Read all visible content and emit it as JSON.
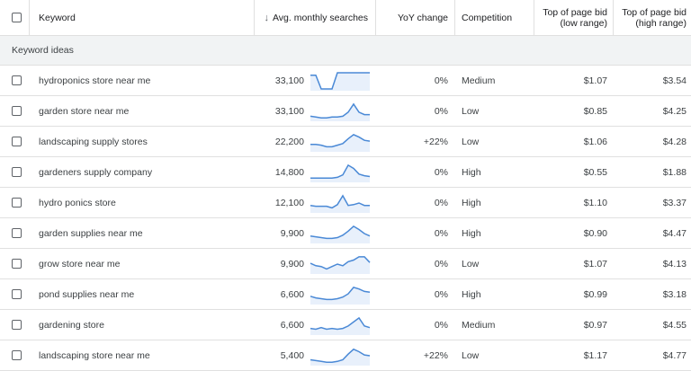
{
  "header": {
    "keyword": "Keyword",
    "avg_searches": "Avg. monthly searches",
    "sort_icon": "arrow-down-icon",
    "yoy": "YoY change",
    "competition": "Competition",
    "bid_low_line1": "Top of page bid",
    "bid_low_line2": "(low range)",
    "bid_high_line1": "Top of page bid",
    "bid_high_line2": "(high range)"
  },
  "group_label": "Keyword ideas",
  "colors": {
    "spark_line": "#4a89d6",
    "spark_fill": "#e8f0fb",
    "border": "#e0e0e0",
    "group_bg": "#f1f3f4"
  },
  "rows": [
    {
      "keyword": "hydroponics store near me",
      "searches": "33,100",
      "yoy": "0%",
      "competition": "Medium",
      "bid_low": "$1.07",
      "bid_high": "$3.54",
      "trend": [
        0.85,
        0.85,
        0.0,
        0.0,
        0.0,
        1.0,
        1.0,
        1.0,
        1.0,
        1.0,
        1.0,
        1.0
      ]
    },
    {
      "keyword": "garden store near me",
      "searches": "33,100",
      "yoy": "0%",
      "competition": "Low",
      "bid_low": "$0.85",
      "bid_high": "$4.25",
      "trend": [
        0.2,
        0.15,
        0.1,
        0.1,
        0.15,
        0.15,
        0.2,
        0.45,
        0.95,
        0.45,
        0.3,
        0.3
      ]
    },
    {
      "keyword": "landscaping supply stores",
      "searches": "22,200",
      "yoy": "+22%",
      "competition": "Low",
      "bid_low": "$1.06",
      "bid_high": "$4.28",
      "trend": [
        0.35,
        0.35,
        0.3,
        0.2,
        0.2,
        0.3,
        0.4,
        0.7,
        0.95,
        0.8,
        0.6,
        0.55
      ]
    },
    {
      "keyword": "gardeners supply company",
      "searches": "14,800",
      "yoy": "0%",
      "competition": "High",
      "bid_low": "$0.55",
      "bid_high": "$1.88",
      "trend": [
        0.15,
        0.15,
        0.15,
        0.15,
        0.15,
        0.2,
        0.35,
        0.95,
        0.75,
        0.4,
        0.3,
        0.25
      ]
    },
    {
      "keyword": "hydro ponics store",
      "searches": "12,100",
      "yoy": "0%",
      "competition": "High",
      "bid_low": "$1.10",
      "bid_high": "$3.37",
      "trend": [
        0.35,
        0.3,
        0.3,
        0.3,
        0.2,
        0.4,
        0.95,
        0.35,
        0.4,
        0.5,
        0.35,
        0.35
      ]
    },
    {
      "keyword": "garden supplies near me",
      "searches": "9,900",
      "yoy": "0%",
      "competition": "High",
      "bid_low": "$0.90",
      "bid_high": "$4.47",
      "trend": [
        0.35,
        0.3,
        0.25,
        0.2,
        0.2,
        0.25,
        0.4,
        0.65,
        0.95,
        0.75,
        0.5,
        0.35
      ]
    },
    {
      "keyword": "grow store near me",
      "searches": "9,900",
      "yoy": "0%",
      "competition": "Low",
      "bid_low": "$1.07",
      "bid_high": "$4.13",
      "trend": [
        0.55,
        0.4,
        0.35,
        0.2,
        0.35,
        0.5,
        0.4,
        0.65,
        0.75,
        0.95,
        0.95,
        0.6
      ]
    },
    {
      "keyword": "pond supplies near me",
      "searches": "6,600",
      "yoy": "0%",
      "competition": "High",
      "bid_low": "$0.99",
      "bid_high": "$3.18",
      "trend": [
        0.4,
        0.3,
        0.25,
        0.2,
        0.2,
        0.25,
        0.35,
        0.55,
        0.95,
        0.85,
        0.7,
        0.65
      ]
    },
    {
      "keyword": "gardening store",
      "searches": "6,600",
      "yoy": "0%",
      "competition": "Medium",
      "bid_low": "$0.97",
      "bid_high": "$4.55",
      "trend": [
        0.3,
        0.25,
        0.35,
        0.25,
        0.3,
        0.25,
        0.3,
        0.45,
        0.7,
        0.95,
        0.45,
        0.35
      ]
    },
    {
      "keyword": "landscaping store near me",
      "searches": "5,400",
      "yoy": "+22%",
      "competition": "Low",
      "bid_low": "$1.17",
      "bid_high": "$4.77",
      "trend": [
        0.25,
        0.2,
        0.15,
        0.1,
        0.1,
        0.15,
        0.25,
        0.6,
        0.9,
        0.75,
        0.55,
        0.5
      ]
    }
  ]
}
